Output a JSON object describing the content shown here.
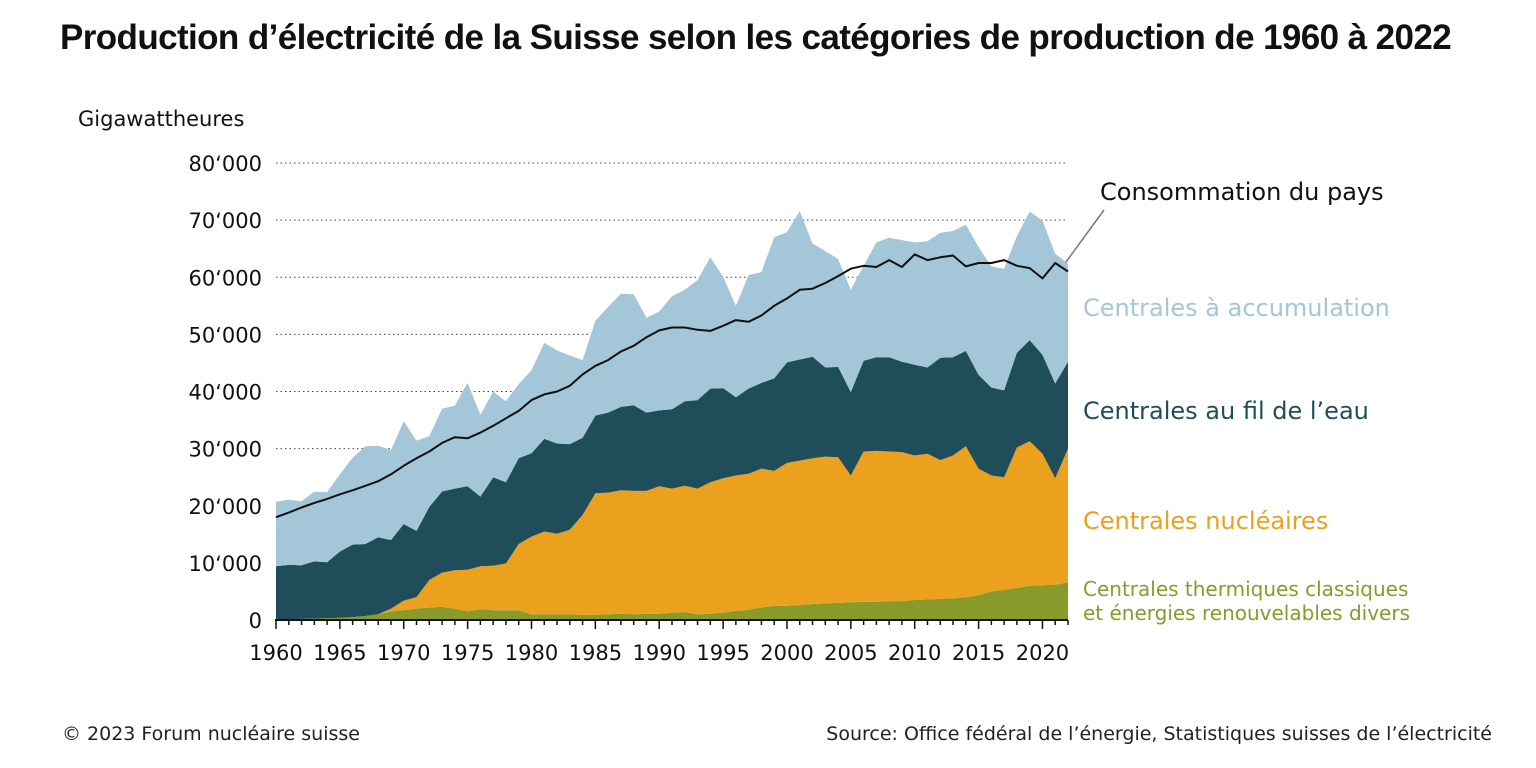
{
  "chart_data": {
    "type": "area",
    "stacked": true,
    "title": "Production d’électricité de la Suisse selon les catégories de production de 1960 à 2022",
    "ylabel": "Gigawattheures",
    "xlabel": "",
    "ylim": [
      0,
      80000
    ],
    "xlim": [
      1960,
      2022
    ],
    "grid": "horizontal dotted",
    "y_ticks": [
      0,
      10000,
      20000,
      30000,
      40000,
      50000,
      60000,
      70000,
      80000
    ],
    "y_tick_labels": [
      "0",
      "10‘000",
      "20‘000",
      "30‘000",
      "40‘000",
      "50‘000",
      "60‘000",
      "70‘000",
      "80‘000"
    ],
    "x_ticks": [
      1960,
      1965,
      1970,
      1975,
      1980,
      1985,
      1990,
      1995,
      2000,
      2005,
      2010,
      2015,
      2020
    ],
    "x_tick_labels": [
      "1960",
      "1965",
      "1970",
      "1975",
      "1980",
      "1985",
      "1990",
      "1995",
      "2000",
      "2005",
      "2010",
      "2015",
      "2020"
    ],
    "x": [
      1960,
      1961,
      1962,
      1963,
      1964,
      1965,
      1966,
      1967,
      1968,
      1969,
      1970,
      1971,
      1972,
      1973,
      1974,
      1975,
      1976,
      1977,
      1978,
      1979,
      1980,
      1981,
      1982,
      1983,
      1984,
      1985,
      1986,
      1987,
      1988,
      1989,
      1990,
      1991,
      1992,
      1993,
      1994,
      1995,
      1996,
      1997,
      1998,
      1999,
      2000,
      2001,
      2002,
      2003,
      2004,
      2005,
      2006,
      2007,
      2008,
      2009,
      2010,
      2011,
      2012,
      2013,
      2014,
      2015,
      2016,
      2017,
      2018,
      2019,
      2020,
      2021,
      2022
    ],
    "series": [
      {
        "name": "Centrales thermiques classiques et énergies renouvelables divers",
        "color": "#8a9a2a",
        "values": [
          100,
          150,
          200,
          250,
          300,
          400,
          500,
          700,
          1000,
          1500,
          1700,
          2000,
          2200,
          2300,
          2000,
          1500,
          1900,
          1700,
          1700,
          1700,
          1000,
          1000,
          1000,
          1000,
          900,
          900,
          1000,
          1100,
          1000,
          1100,
          1100,
          1300,
          1400,
          1000,
          1100,
          1300,
          1600,
          1800,
          2200,
          2500,
          2500,
          2600,
          2800,
          2900,
          3000,
          3100,
          3200,
          3200,
          3300,
          3300,
          3500,
          3600,
          3700,
          3800,
          4000,
          4300,
          5000,
          5300,
          5600,
          6000,
          6100,
          6200,
          6600
        ]
      },
      {
        "name": "Centrales nucléaires",
        "color": "#eba01e",
        "values": [
          0,
          0,
          0,
          0,
          0,
          0,
          0,
          0,
          0,
          500,
          1700,
          2000,
          4800,
          6000,
          6700,
          7300,
          7500,
          7800,
          8200,
          11600,
          13600,
          14500,
          14100,
          14800,
          17500,
          21300,
          21300,
          21600,
          21600,
          21500,
          22300,
          21700,
          22100,
          22000,
          23000,
          23500,
          23700,
          23800,
          24300,
          23600,
          25000,
          25300,
          25500,
          25700,
          25500,
          22200,
          26300,
          26400,
          26200,
          26100,
          25300,
          25500,
          24300,
          25000,
          26400,
          22200,
          20300,
          19700,
          24600,
          25300,
          23000,
          18600,
          23400
        ]
      },
      {
        "name": "Centrales au fil de l’eau",
        "color": "#1f4e5a",
        "values": [
          9300,
          9500,
          9400,
          10000,
          9800,
          11600,
          12700,
          12600,
          13500,
          12000,
          13400,
          11600,
          12800,
          14200,
          14300,
          14600,
          12200,
          15500,
          14200,
          15000,
          14600,
          16200,
          15800,
          15000,
          13500,
          13600,
          14000,
          14600,
          15000,
          13700,
          13300,
          13900,
          14800,
          15500,
          16400,
          15800,
          13700,
          14900,
          15000,
          16200,
          17600,
          17700,
          17800,
          15600,
          15800,
          14600,
          15900,
          16400,
          16500,
          15800,
          15900,
          15100,
          17900,
          17200,
          16700,
          16400,
          15400,
          15200,
          16600,
          17700,
          17300,
          16600,
          15200
        ]
      },
      {
        "name": "Centrales à accumulation",
        "color": "#a3c6d8",
        "values": [
          11300,
          11400,
          11200,
          12200,
          12300,
          13500,
          15200,
          17100,
          16000,
          15800,
          18000,
          15800,
          12400,
          14500,
          14500,
          18100,
          14300,
          15000,
          14200,
          13000,
          14500,
          16800,
          16300,
          15500,
          13600,
          16600,
          18500,
          19800,
          19400,
          16600,
          17300,
          19800,
          19500,
          21000,
          23000,
          19500,
          16000,
          19900,
          19400,
          24700,
          22800,
          26000,
          19800,
          20400,
          18900,
          17900,
          16600,
          20100,
          20900,
          21300,
          21400,
          22100,
          21900,
          22100,
          22100,
          22400,
          21200,
          21300,
          20400,
          22500,
          23500,
          22700,
          17200
        ]
      },
      {
        "name": "Consommation du pays",
        "type": "line",
        "color": "#111111",
        "values": [
          18000,
          18800,
          19700,
          20500,
          21200,
          22000,
          22700,
          23500,
          24300,
          25500,
          27000,
          28300,
          29500,
          31000,
          32000,
          31800,
          32800,
          34000,
          35300,
          36600,
          38500,
          39500,
          40000,
          41000,
          43000,
          44500,
          45500,
          47000,
          48000,
          49500,
          50700,
          51200,
          51200,
          50800,
          50600,
          51500,
          52500,
          52200,
          53300,
          55000,
          56300,
          57800,
          58000,
          59000,
          60200,
          61500,
          62000,
          61800,
          63000,
          61800,
          64000,
          63000,
          63500,
          63800,
          61900,
          62500,
          62500,
          63000,
          62000,
          61600,
          59800,
          62500,
          61000
        ]
      }
    ],
    "legend": [
      {
        "label": "Centrales à accumulation",
        "color": "#a3c6d8"
      },
      {
        "label": "Centrales au fil de l’eau",
        "color": "#1f4e5a"
      },
      {
        "label": "Centrales nucléaires",
        "color": "#eba01e"
      },
      {
        "label_line1": "Centrales thermiques classiques",
        "label_line2": "et énergies renouvelables divers",
        "color": "#8a9a2a"
      }
    ],
    "annotations": [
      {
        "text": "Consommation du pays",
        "points_to": {
          "x": 2022,
          "y": 62500
        }
      }
    ]
  },
  "footer": {
    "copyright": "© 2023 Forum nucléaire suisse",
    "source": "Source: Office fédéral de l’énergie, Statistiques suisses de l’électricité"
  }
}
